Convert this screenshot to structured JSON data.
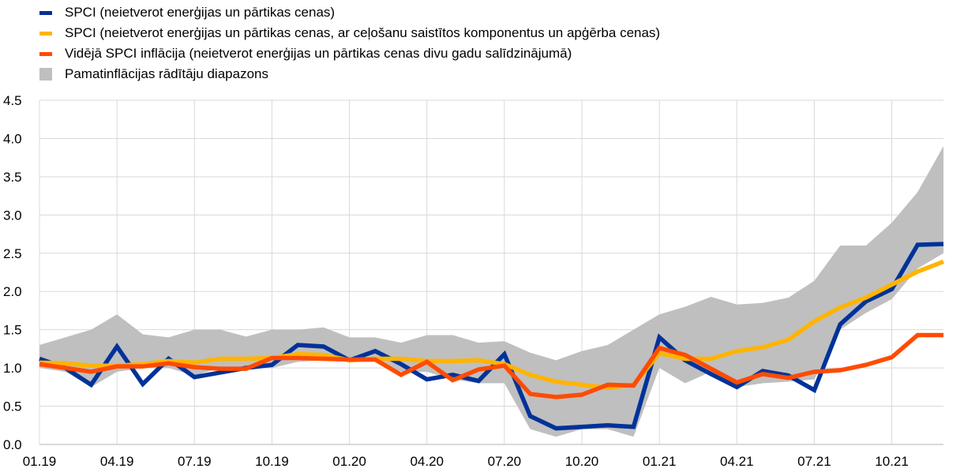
{
  "chart_data": {
    "type": "line",
    "title": "",
    "xlabel": "",
    "ylabel": "",
    "ylim": [
      0,
      4.5
    ],
    "yticks": [
      "0.0",
      "0.5",
      "1.0",
      "1.5",
      "2.0",
      "2.5",
      "3.0",
      "3.5",
      "4.0",
      "4.5"
    ],
    "xtick_labels": [
      "01.19",
      "04.19",
      "07.19",
      "10.19",
      "01.20",
      "04.20",
      "07.20",
      "10.20",
      "01.21",
      "04.21",
      "07.21",
      "10.21"
    ],
    "x": [
      "01.19",
      "02.19",
      "03.19",
      "04.19",
      "05.19",
      "06.19",
      "07.19",
      "08.19",
      "09.19",
      "10.19",
      "11.19",
      "12.19",
      "01.20",
      "02.20",
      "03.20",
      "04.20",
      "05.20",
      "06.20",
      "07.20",
      "08.20",
      "09.20",
      "10.20",
      "11.20",
      "12.20",
      "01.21",
      "02.21",
      "03.21",
      "04.21",
      "05.21",
      "06.21",
      "07.21",
      "08.21",
      "09.21",
      "10.21",
      "11.21",
      "12.21"
    ],
    "grid": true,
    "legend_position": "top-left",
    "band": {
      "name": "Pamatinflācijas rādītāju diapazons",
      "color": "#bfbfbf",
      "upper": [
        1.3,
        1.4,
        1.5,
        1.7,
        1.44,
        1.4,
        1.5,
        1.5,
        1.41,
        1.5,
        1.5,
        1.53,
        1.4,
        1.4,
        1.33,
        1.43,
        1.43,
        1.33,
        1.35,
        1.2,
        1.1,
        1.22,
        1.3,
        1.5,
        1.7,
        1.8,
        1.93,
        1.83,
        1.85,
        1.92,
        2.14,
        2.6,
        2.6,
        2.9,
        3.3,
        3.9
      ],
      "lower": [
        1.0,
        0.95,
        0.75,
        0.95,
        1.0,
        1.0,
        0.9,
        1.0,
        1.0,
        1.0,
        1.08,
        1.1,
        1.08,
        1.08,
        0.95,
        0.95,
        0.85,
        0.8,
        0.8,
        0.2,
        0.1,
        0.2,
        0.2,
        0.1,
        1.0,
        0.8,
        0.95,
        0.75,
        0.8,
        0.82,
        0.85,
        1.5,
        1.72,
        1.9,
        2.3,
        2.5
      ]
    },
    "series": [
      {
        "name": "SPCI (neietverot enerģijas un pārtikas cenas)",
        "color": "#003299",
        "values": [
          1.12,
          1.0,
          0.78,
          1.28,
          0.79,
          1.12,
          0.88,
          0.94,
          1.0,
          1.04,
          1.3,
          1.28,
          1.1,
          1.22,
          1.05,
          0.85,
          0.91,
          0.83,
          1.18,
          0.37,
          0.21,
          0.23,
          0.25,
          0.23,
          1.4,
          1.1,
          0.92,
          0.75,
          0.96,
          0.9,
          0.71,
          1.57,
          1.87,
          2.03,
          2.61,
          2.62
        ]
      },
      {
        "name": "SPCI (neietverot enerģijas un pārtikas cenas, ar ceļošanu saistītos komponentus un apģērba cenas)",
        "color": "#ffb400",
        "values": [
          1.07,
          1.06,
          1.03,
          1.03,
          1.05,
          1.09,
          1.07,
          1.12,
          1.12,
          1.13,
          1.18,
          1.17,
          1.1,
          1.12,
          1.12,
          1.09,
          1.09,
          1.1,
          1.05,
          0.91,
          0.82,
          0.78,
          0.74,
          0.78,
          1.19,
          1.12,
          1.12,
          1.22,
          1.27,
          1.37,
          1.61,
          1.79,
          1.92,
          2.09,
          2.26,
          2.39
        ]
      },
      {
        "name": "Vidējā SPCI inflācija (neietverot enerģijas un pārtikas cenas divu gadu salīdzinājumā)",
        "color": "#ff4b00",
        "values": [
          1.05,
          1.0,
          0.95,
          1.02,
          1.02,
          1.06,
          1.01,
          0.99,
          0.99,
          1.13,
          1.13,
          1.12,
          1.11,
          1.11,
          0.91,
          1.08,
          0.84,
          0.98,
          1.03,
          0.66,
          0.62,
          0.65,
          0.78,
          0.77,
          1.26,
          1.17,
          0.99,
          0.81,
          0.92,
          0.87,
          0.95,
          0.97,
          1.04,
          1.14,
          1.43,
          1.43
        ]
      }
    ]
  }
}
